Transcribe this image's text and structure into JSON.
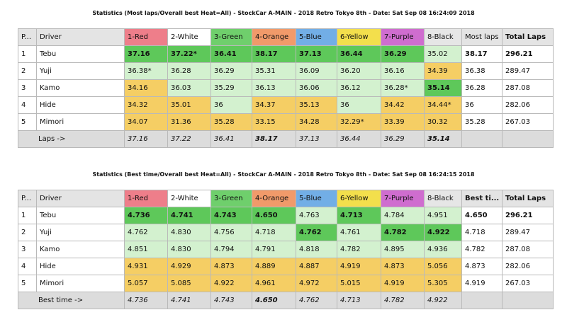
{
  "table1": {
    "title": "Statistics (Most laps/Overall best Heat=All) - StockCar A-MAIN - 2018 Retro Tokyo 8th - Date: Sat Sep 08 16:24:09 2018",
    "headers": [
      "P...",
      "Driver",
      "1-Red",
      "2-White",
      "3-Green",
      "4-Orange",
      "5-Blue",
      "6-Yellow",
      "7-Purple",
      "8-Black",
      "Most laps",
      "Total Laps"
    ],
    "rows": [
      [
        "1",
        "Tebu",
        "37.16",
        "37.22*",
        "36.41",
        "38.17",
        "37.13",
        "36.44",
        "36.29",
        "35.02",
        "38.17",
        "296.21"
      ],
      [
        "2",
        "Yuji",
        "36.38*",
        "36.28",
        "36.29",
        "35.31",
        "36.09",
        "36.20",
        "36.16",
        "34.39",
        "36.38",
        "289.47"
      ],
      [
        "3",
        "Kamo",
        "34.16",
        "36.03",
        "35.29",
        "36.13",
        "36.06",
        "36.12",
        "36.28*",
        "35.14",
        "36.28",
        "287.08"
      ],
      [
        "4",
        "Hide",
        "34.32",
        "35.01",
        "36",
        "34.37",
        "35.13",
        "36",
        "34.42",
        "34.44*",
        "36",
        "282.06"
      ],
      [
        "5",
        "Mimori",
        "34.07",
        "31.36",
        "35.28",
        "33.15",
        "34.28",
        "32.29*",
        "33.39",
        "30.32",
        "35.28",
        "267.03"
      ]
    ],
    "footer": [
      "Laps ->",
      "37.16",
      "37.22",
      "36.41",
      "38.17",
      "37.13",
      "36.44",
      "36.29",
      "35.14",
      "",
      ""
    ]
  },
  "table2": {
    "title": "Statistics (Best time/Overall best Heat=All) - StockCar A-MAIN - 2018 Retro Tokyo 8th - Date: Sat Sep 08 16:24:15 2018",
    "headers": [
      "P...",
      "Driver",
      "1-Red",
      "2-White",
      "3-Green",
      "4-Orange",
      "5-Blue",
      "6-Yellow",
      "7-Purple",
      "8-Black",
      "Best ti...",
      "Total Laps"
    ],
    "rows": [
      [
        "1",
        "Tebu",
        "4.736",
        "4.741",
        "4.743",
        "4.650",
        "4.763",
        "4.713",
        "4.784",
        "4.951",
        "4.650",
        "296.21"
      ],
      [
        "2",
        "Yuji",
        "4.762",
        "4.830",
        "4.756",
        "4.718",
        "4.762",
        "4.761",
        "4.782",
        "4.922",
        "4.718",
        "289.47"
      ],
      [
        "3",
        "Kamo",
        "4.851",
        "4.830",
        "4.794",
        "4.791",
        "4.818",
        "4.782",
        "4.895",
        "4.936",
        "4.782",
        "287.08"
      ],
      [
        "4",
        "Hide",
        "4.931",
        "4.929",
        "4.873",
        "4.889",
        "4.887",
        "4.919",
        "4.873",
        "5.056",
        "4.873",
        "282.06"
      ],
      [
        "5",
        "Mimori",
        "5.057",
        "5.085",
        "4.922",
        "4.961",
        "4.972",
        "5.015",
        "4.919",
        "5.305",
        "4.919",
        "267.03"
      ]
    ],
    "footer": [
      "Best time ->",
      "4.736",
      "4.741",
      "4.743",
      "4.650",
      "4.762",
      "4.713",
      "4.782",
      "4.922",
      "",
      ""
    ]
  },
  "colors": {
    "red": "#ee7e8a",
    "white": "#ffffff",
    "green": "#6fcf6c",
    "orange": "#f19a6a",
    "blue": "#72aee6",
    "yellow": "#f3df4c",
    "purple": "#cf6dcf",
    "black": "#e6e6e6",
    "best": "#5ec85a",
    "good": "#9ade95",
    "mid": "#d3f1cf",
    "slow": "#f5ce64"
  }
}
